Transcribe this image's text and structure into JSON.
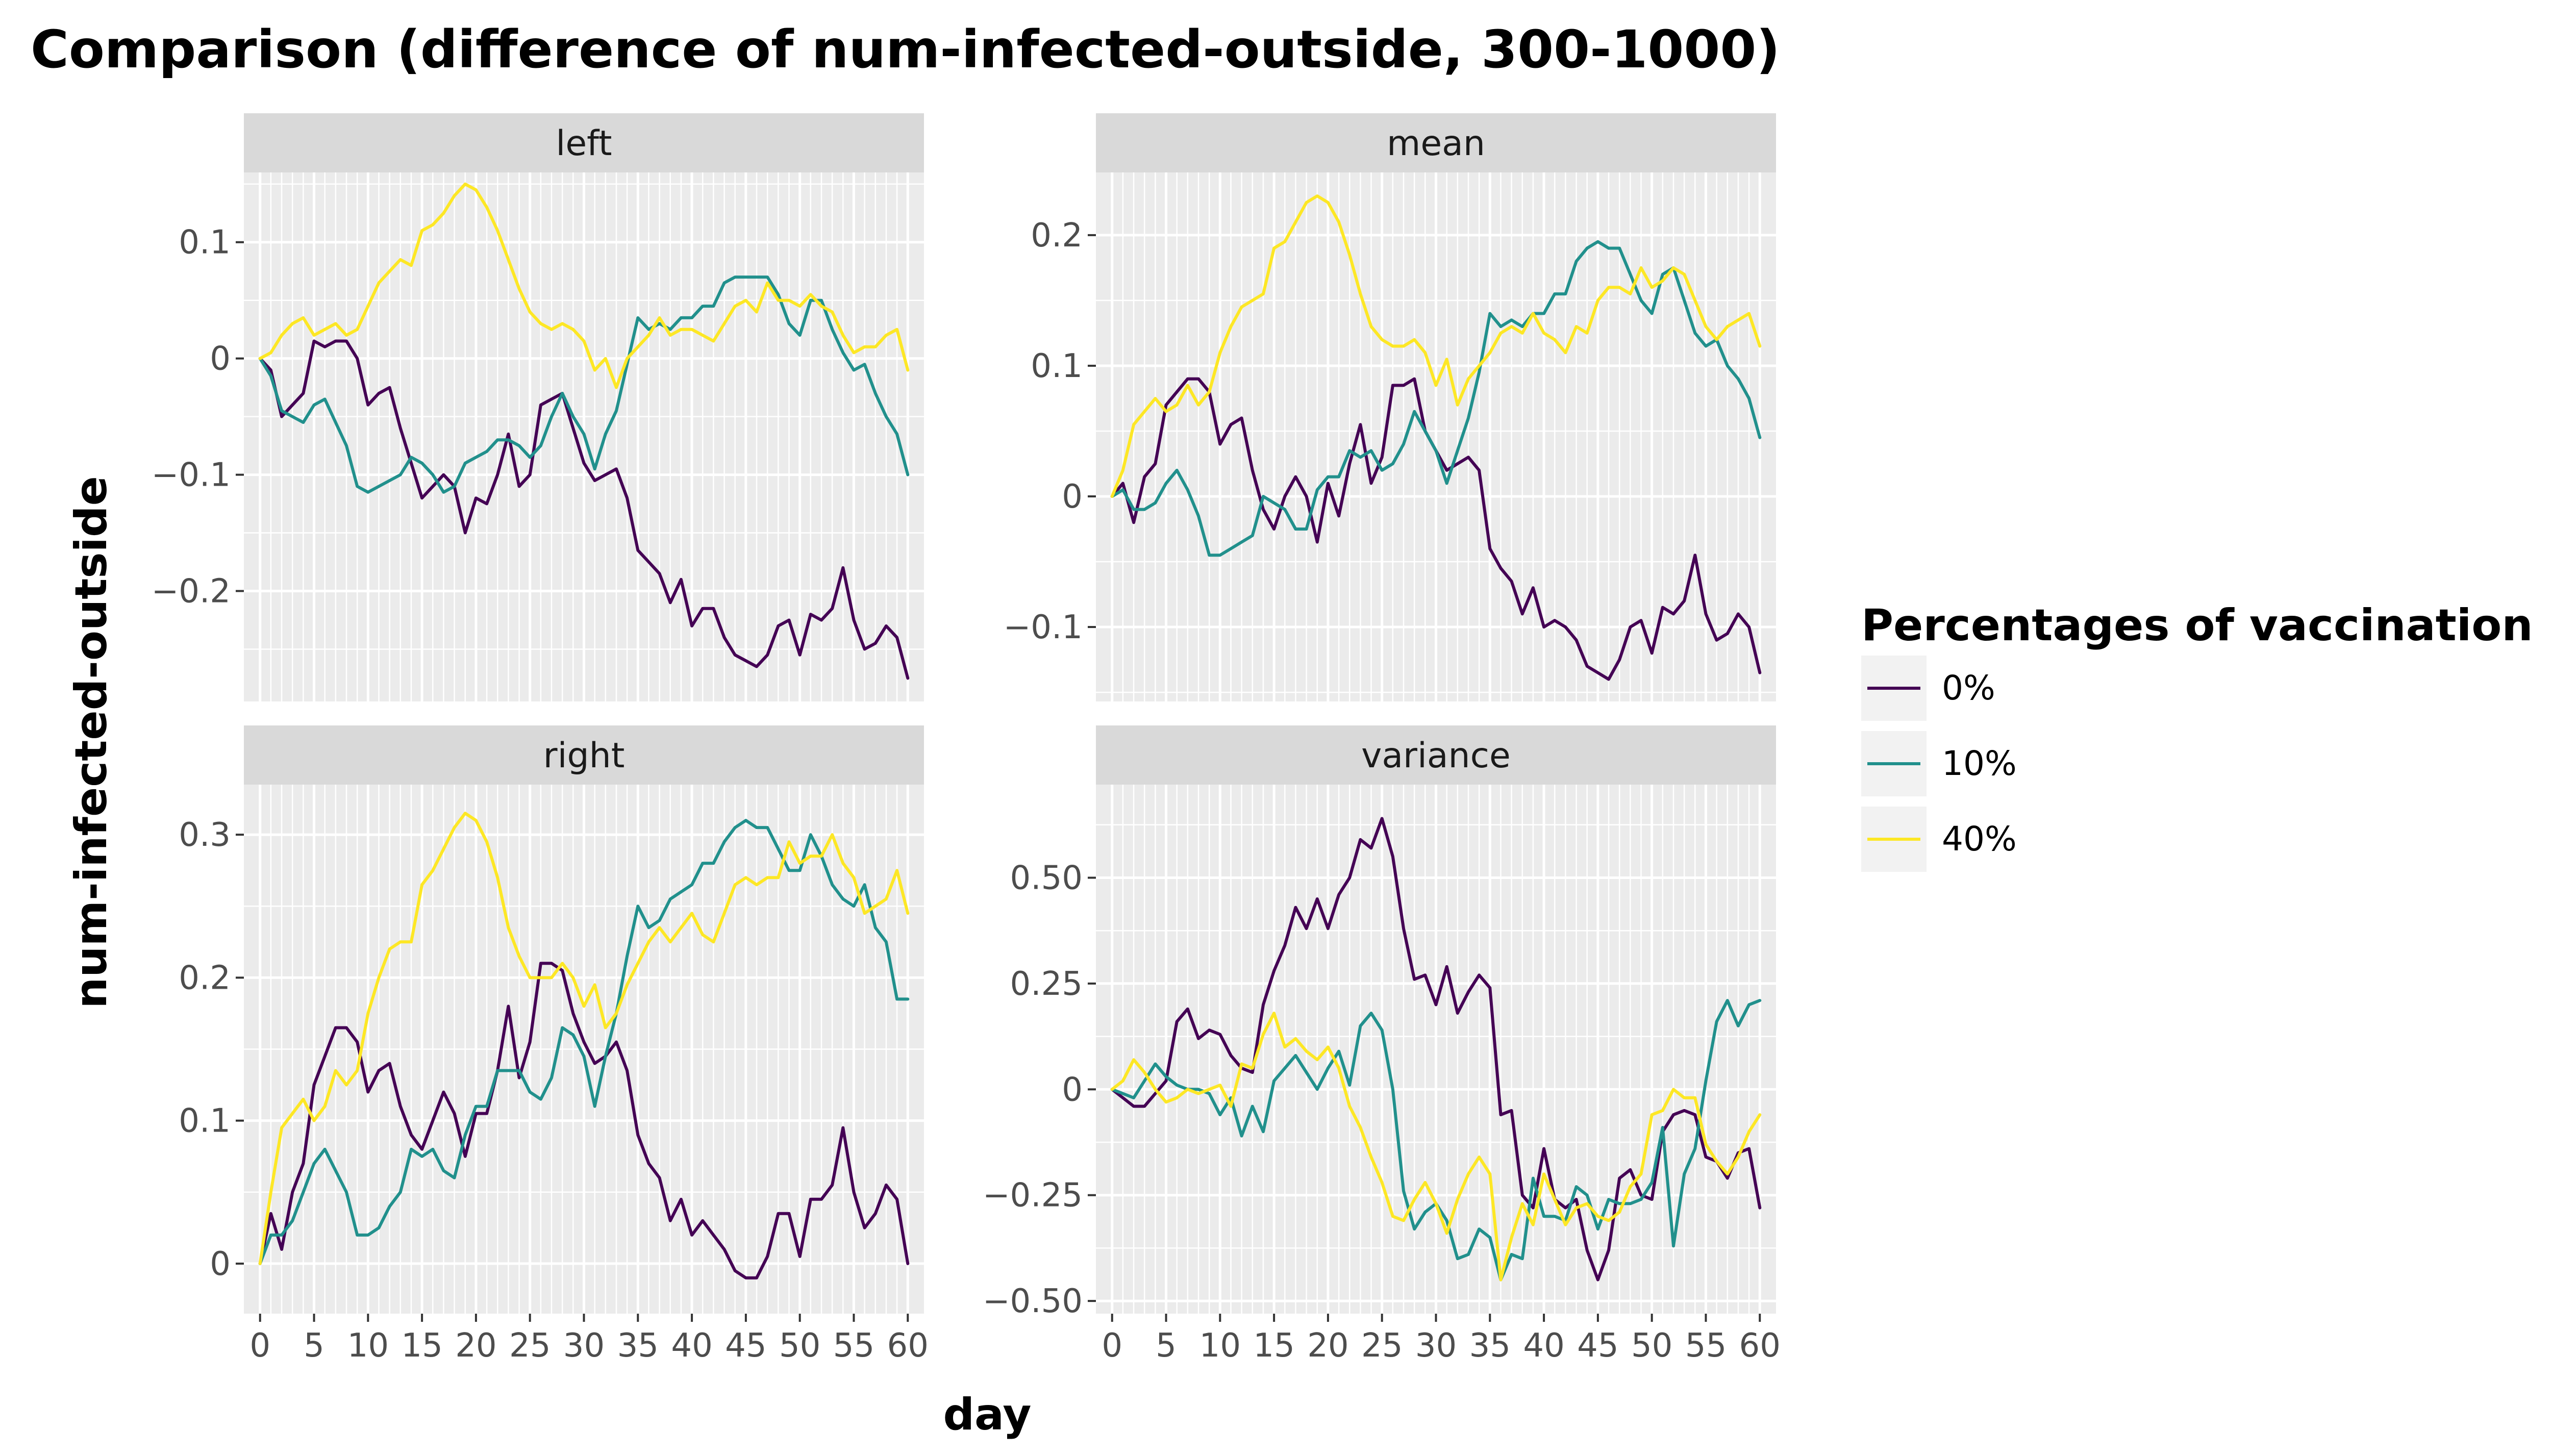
{
  "chart_data": {
    "type": "line",
    "title": "Comparison (difference of num-infected-outside, 300-1000)",
    "xlabel": "day",
    "ylabel": "num-infected-outside",
    "grid": true,
    "legend": {
      "title": "Percentages of vaccination",
      "position": "right",
      "entries": [
        "0%",
        "10%",
        "40%"
      ]
    },
    "series_colors": {
      "0%": "#440154",
      "10%": "#21908c",
      "40%": "#fde725"
    },
    "x_ticks": [
      0,
      5,
      10,
      15,
      20,
      25,
      30,
      35,
      40,
      45,
      50,
      55,
      60
    ],
    "x_tick_labels": [
      "0",
      "5",
      "10",
      "15",
      "20",
      "25",
      "30",
      "35",
      "40",
      "45",
      "50",
      "55",
      "60"
    ],
    "x_range": [
      -1.5,
      61.5
    ],
    "x": [
      0,
      1,
      2,
      3,
      4,
      5,
      6,
      7,
      8,
      9,
      10,
      11,
      12,
      13,
      14,
      15,
      16,
      17,
      18,
      19,
      20,
      21,
      22,
      23,
      24,
      25,
      26,
      27,
      28,
      29,
      30,
      31,
      32,
      33,
      34,
      35,
      36,
      37,
      38,
      39,
      40,
      41,
      42,
      43,
      44,
      45,
      46,
      47,
      48,
      49,
      50,
      51,
      52,
      53,
      54,
      55,
      56,
      57,
      58,
      59,
      60
    ],
    "panels": [
      {
        "label": "left",
        "y_range": [
          -0.295,
          0.16
        ],
        "y_ticks": [
          -0.2,
          -0.1,
          0,
          0.1
        ],
        "y_tick_labels": [
          "−0.2",
          "−0.1",
          "0",
          "0.1"
        ],
        "series": [
          {
            "name": "0%",
            "values": [
              0.0,
              -0.01,
              -0.05,
              -0.04,
              -0.03,
              0.015,
              0.01,
              0.015,
              0.015,
              0.0,
              -0.04,
              -0.03,
              -0.025,
              -0.06,
              -0.09,
              -0.12,
              -0.11,
              -0.1,
              -0.11,
              -0.15,
              -0.12,
              -0.125,
              -0.1,
              -0.065,
              -0.11,
              -0.1,
              -0.04,
              -0.035,
              -0.03,
              -0.06,
              -0.09,
              -0.105,
              -0.1,
              -0.095,
              -0.12,
              -0.165,
              -0.175,
              -0.185,
              -0.21,
              -0.19,
              -0.23,
              -0.215,
              -0.215,
              -0.24,
              -0.255,
              -0.26,
              -0.265,
              -0.255,
              -0.23,
              -0.225,
              -0.255,
              -0.22,
              -0.225,
              -0.215,
              -0.18,
              -0.225,
              -0.25,
              -0.245,
              -0.23,
              -0.24,
              -0.275
            ]
          },
          {
            "name": "10%",
            "values": [
              0.0,
              -0.015,
              -0.045,
              -0.05,
              -0.055,
              -0.04,
              -0.035,
              -0.055,
              -0.075,
              -0.11,
              -0.115,
              -0.11,
              -0.105,
              -0.1,
              -0.085,
              -0.09,
              -0.1,
              -0.115,
              -0.11,
              -0.09,
              -0.085,
              -0.08,
              -0.07,
              -0.07,
              -0.075,
              -0.085,
              -0.075,
              -0.05,
              -0.03,
              -0.05,
              -0.065,
              -0.095,
              -0.065,
              -0.045,
              -0.005,
              0.035,
              0.025,
              0.03,
              0.025,
              0.035,
              0.035,
              0.045,
              0.045,
              0.065,
              0.07,
              0.07,
              0.07,
              0.07,
              0.055,
              0.03,
              0.02,
              0.05,
              0.05,
              0.025,
              0.005,
              -0.01,
              -0.005,
              -0.03,
              -0.05,
              -0.065,
              -0.1
            ]
          },
          {
            "name": "40%",
            "values": [
              0.0,
              0.005,
              0.02,
              0.03,
              0.035,
              0.02,
              0.025,
              0.03,
              0.02,
              0.025,
              0.045,
              0.065,
              0.075,
              0.085,
              0.08,
              0.11,
              0.115,
              0.125,
              0.14,
              0.15,
              0.145,
              0.13,
              0.11,
              0.085,
              0.06,
              0.04,
              0.03,
              0.025,
              0.03,
              0.025,
              0.015,
              -0.01,
              0.0,
              -0.025,
              0.0,
              0.01,
              0.02,
              0.035,
              0.02,
              0.025,
              0.025,
              0.02,
              0.015,
              0.03,
              0.045,
              0.05,
              0.04,
              0.065,
              0.05,
              0.05,
              0.045,
              0.055,
              0.045,
              0.04,
              0.02,
              0.005,
              0.01,
              0.01,
              0.02,
              0.025,
              -0.01
            ]
          }
        ]
      },
      {
        "label": "mean",
        "y_range": [
          -0.157,
          0.248
        ],
        "y_ticks": [
          -0.1,
          0,
          0.1,
          0.2
        ],
        "y_tick_labels": [
          "−0.1",
          "0",
          "0.1",
          "0.2"
        ],
        "series": [
          {
            "name": "0%",
            "values": [
              0.0,
              0.01,
              -0.02,
              0.015,
              0.025,
              0.07,
              0.08,
              0.09,
              0.09,
              0.08,
              0.04,
              0.055,
              0.06,
              0.02,
              -0.01,
              -0.025,
              0.0,
              0.015,
              0.0,
              -0.035,
              0.01,
              -0.015,
              0.025,
              0.055,
              0.01,
              0.03,
              0.085,
              0.085,
              0.09,
              0.05,
              0.035,
              0.02,
              0.025,
              0.03,
              0.02,
              -0.04,
              -0.055,
              -0.065,
              -0.09,
              -0.07,
              -0.1,
              -0.095,
              -0.1,
              -0.11,
              -0.13,
              -0.135,
              -0.14,
              -0.125,
              -0.1,
              -0.095,
              -0.12,
              -0.085,
              -0.09,
              -0.08,
              -0.045,
              -0.09,
              -0.11,
              -0.105,
              -0.09,
              -0.1,
              -0.135
            ]
          },
          {
            "name": "10%",
            "values": [
              0.0,
              0.005,
              -0.01,
              -0.01,
              -0.005,
              0.01,
              0.02,
              0.005,
              -0.015,
              -0.045,
              -0.045,
              -0.04,
              -0.035,
              -0.03,
              0.0,
              -0.005,
              -0.01,
              -0.025,
              -0.025,
              0.005,
              0.015,
              0.015,
              0.035,
              0.03,
              0.035,
              0.02,
              0.025,
              0.04,
              0.065,
              0.05,
              0.035,
              0.01,
              0.035,
              0.06,
              0.095,
              0.14,
              0.13,
              0.135,
              0.13,
              0.14,
              0.14,
              0.155,
              0.155,
              0.18,
              0.19,
              0.195,
              0.19,
              0.19,
              0.17,
              0.15,
              0.14,
              0.17,
              0.175,
              0.15,
              0.125,
              0.115,
              0.12,
              0.1,
              0.09,
              0.075,
              0.045
            ]
          },
          {
            "name": "40%",
            "values": [
              0.0,
              0.02,
              0.055,
              0.065,
              0.075,
              0.065,
              0.07,
              0.085,
              0.07,
              0.08,
              0.11,
              0.13,
              0.145,
              0.15,
              0.155,
              0.19,
              0.195,
              0.21,
              0.225,
              0.23,
              0.225,
              0.21,
              0.185,
              0.155,
              0.13,
              0.12,
              0.115,
              0.115,
              0.12,
              0.11,
              0.085,
              0.105,
              0.07,
              0.09,
              0.1,
              0.11,
              0.125,
              0.13,
              0.125,
              0.14,
              0.125,
              0.12,
              0.11,
              0.13,
              0.125,
              0.15,
              0.16,
              0.16,
              0.155,
              0.175,
              0.16,
              0.165,
              0.175,
              0.17,
              0.15,
              0.13,
              0.12,
              0.13,
              0.135,
              0.14,
              0.115
            ]
          }
        ]
      },
      {
        "label": "right",
        "y_range": [
          -0.035,
          0.335
        ],
        "y_ticks": [
          0,
          0.1,
          0.2,
          0.3
        ],
        "y_tick_labels": [
          "0",
          "0.1",
          "0.2",
          "0.3"
        ],
        "series": [
          {
            "name": "0%",
            "values": [
              0.0,
              0.035,
              0.01,
              0.05,
              0.07,
              0.125,
              0.145,
              0.165,
              0.165,
              0.155,
              0.12,
              0.135,
              0.14,
              0.11,
              0.09,
              0.08,
              0.1,
              0.12,
              0.105,
              0.075,
              0.105,
              0.105,
              0.135,
              0.18,
              0.13,
              0.155,
              0.21,
              0.21,
              0.205,
              0.175,
              0.155,
              0.14,
              0.145,
              0.155,
              0.135,
              0.09,
              0.07,
              0.06,
              0.03,
              0.045,
              0.02,
              0.03,
              0.02,
              0.01,
              -0.005,
              -0.01,
              -0.01,
              0.005,
              0.035,
              0.035,
              0.005,
              0.045,
              0.045,
              0.055,
              0.095,
              0.05,
              0.025,
              0.035,
              0.055,
              0.045,
              0.0
            ]
          },
          {
            "name": "10%",
            "values": [
              0.0,
              0.02,
              0.02,
              0.03,
              0.05,
              0.07,
              0.08,
              0.065,
              0.05,
              0.02,
              0.02,
              0.025,
              0.04,
              0.05,
              0.08,
              0.075,
              0.08,
              0.065,
              0.06,
              0.09,
              0.11,
              0.11,
              0.135,
              0.135,
              0.135,
              0.12,
              0.115,
              0.13,
              0.165,
              0.16,
              0.145,
              0.11,
              0.145,
              0.175,
              0.215,
              0.25,
              0.235,
              0.24,
              0.255,
              0.26,
              0.265,
              0.28,
              0.28,
              0.295,
              0.305,
              0.31,
              0.305,
              0.305,
              0.29,
              0.275,
              0.275,
              0.3,
              0.285,
              0.265,
              0.255,
              0.25,
              0.265,
              0.235,
              0.225,
              0.185,
              0.185
            ]
          },
          {
            "name": "40%",
            "values": [
              0.0,
              0.05,
              0.095,
              0.105,
              0.115,
              0.1,
              0.11,
              0.135,
              0.125,
              0.135,
              0.175,
              0.2,
              0.22,
              0.225,
              0.225,
              0.265,
              0.275,
              0.29,
              0.305,
              0.315,
              0.31,
              0.295,
              0.27,
              0.235,
              0.215,
              0.2,
              0.2,
              0.2,
              0.21,
              0.2,
              0.18,
              0.195,
              0.165,
              0.175,
              0.195,
              0.21,
              0.225,
              0.235,
              0.225,
              0.235,
              0.245,
              0.23,
              0.225,
              0.245,
              0.265,
              0.27,
              0.265,
              0.27,
              0.27,
              0.295,
              0.28,
              0.285,
              0.285,
              0.3,
              0.28,
              0.27,
              0.245,
              0.25,
              0.255,
              0.275,
              0.245
            ]
          }
        ]
      },
      {
        "label": "variance",
        "y_range": [
          -0.53,
          0.72
        ],
        "y_ticks": [
          -0.5,
          -0.25,
          0,
          0.25,
          0.5
        ],
        "y_tick_labels": [
          "−0.50",
          "−0.25",
          "0",
          "0.25",
          "0.50"
        ],
        "series": [
          {
            "name": "0%",
            "values": [
              0.0,
              -0.02,
              -0.04,
              -0.04,
              -0.01,
              0.02,
              0.16,
              0.19,
              0.12,
              0.14,
              0.13,
              0.08,
              0.05,
              0.04,
              0.2,
              0.28,
              0.34,
              0.43,
              0.38,
              0.45,
              0.38,
              0.46,
              0.5,
              0.59,
              0.57,
              0.64,
              0.55,
              0.38,
              0.26,
              0.27,
              0.2,
              0.29,
              0.18,
              0.23,
              0.27,
              0.24,
              -0.06,
              -0.05,
              -0.25,
              -0.28,
              -0.14,
              -0.26,
              -0.28,
              -0.26,
              -0.38,
              -0.45,
              -0.38,
              -0.21,
              -0.19,
              -0.25,
              -0.26,
              -0.1,
              -0.06,
              -0.05,
              -0.06,
              -0.16,
              -0.17,
              -0.21,
              -0.15,
              -0.14,
              -0.28
            ]
          },
          {
            "name": "10%",
            "values": [
              0.0,
              -0.01,
              -0.02,
              0.02,
              0.06,
              0.03,
              0.01,
              0.0,
              0.0,
              -0.01,
              -0.06,
              -0.02,
              -0.11,
              -0.04,
              -0.1,
              0.02,
              0.05,
              0.08,
              0.04,
              0.0,
              0.05,
              0.09,
              0.01,
              0.15,
              0.18,
              0.14,
              0.0,
              -0.24,
              -0.33,
              -0.29,
              -0.27,
              -0.31,
              -0.4,
              -0.39,
              -0.33,
              -0.35,
              -0.45,
              -0.39,
              -0.4,
              -0.21,
              -0.3,
              -0.3,
              -0.31,
              -0.23,
              -0.25,
              -0.33,
              -0.26,
              -0.27,
              -0.27,
              -0.26,
              -0.22,
              -0.09,
              -0.37,
              -0.2,
              -0.14,
              0.02,
              0.16,
              0.21,
              0.15,
              0.2,
              0.21
            ]
          },
          {
            "name": "40%",
            "values": [
              0.0,
              0.02,
              0.07,
              0.04,
              0.0,
              -0.03,
              -0.02,
              0.0,
              -0.01,
              0.0,
              0.01,
              -0.04,
              0.06,
              0.05,
              0.13,
              0.18,
              0.1,
              0.12,
              0.09,
              0.07,
              0.1,
              0.05,
              -0.04,
              -0.09,
              -0.16,
              -0.22,
              -0.3,
              -0.31,
              -0.26,
              -0.22,
              -0.27,
              -0.34,
              -0.26,
              -0.2,
              -0.16,
              -0.2,
              -0.45,
              -0.35,
              -0.27,
              -0.32,
              -0.2,
              -0.26,
              -0.32,
              -0.28,
              -0.27,
              -0.3,
              -0.31,
              -0.29,
              -0.23,
              -0.2,
              -0.06,
              -0.05,
              0.0,
              -0.02,
              -0.02,
              -0.13,
              -0.17,
              -0.2,
              -0.16,
              -0.1,
              -0.06
            ]
          }
        ]
      }
    ]
  }
}
